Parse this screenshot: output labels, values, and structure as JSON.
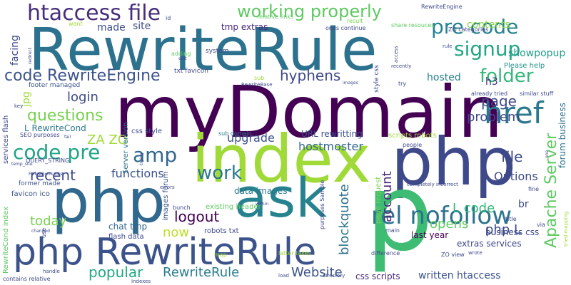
{
  "words": [
    {
      "text": "RewriteRule",
      "color": "#2c728e"
    },
    {
      "text": "myDomain",
      "color": "#440154"
    },
    {
      "text": "index",
      "color": "#a0da39"
    },
    {
      "text": "php",
      "color": "#3e4989"
    },
    {
      "text": "php",
      "color": "#31688e"
    },
    {
      "text": "ask",
      "color": "#26828e"
    },
    {
      "text": "php RewriteRule",
      "color": "#3b528b"
    },
    {
      "text": "p",
      "color": "#3fbc73"
    },
    {
      "text": "htaccess file",
      "color": "#472d7b"
    },
    {
      "text": "working properly",
      "color": "#5ec962"
    },
    {
      "text": "pre code",
      "color": "#26828e"
    },
    {
      "text": "signup",
      "color": "#21a585"
    },
    {
      "text": "href",
      "color": "#2a788e"
    },
    {
      "text": "rel nofollow",
      "color": "#2c728e"
    },
    {
      "text": "code RewriteEngine",
      "color": "#3b528b"
    },
    {
      "text": "hyphens",
      "color": "#3e4989"
    },
    {
      "text": "folder",
      "color": "#35b779"
    },
    {
      "text": "code pre",
      "color": "#20a486"
    },
    {
      "text": "amp",
      "color": "#31688e"
    },
    {
      "text": "work",
      "color": "#2a788e"
    },
    {
      "text": "Apache Server",
      "color": "#5ec962"
    },
    {
      "text": "questions",
      "color": "#7ad151"
    },
    {
      "text": "recent",
      "color": "#3e4989"
    },
    {
      "text": "logout",
      "color": "#440154"
    },
    {
      "text": "popular",
      "color": "#22a884"
    },
    {
      "text": "RewriteRule",
      "color": "#287c8e"
    },
    {
      "text": "Website",
      "color": "#3b528b"
    },
    {
      "text": "blockquote",
      "color": "#2c728e"
    },
    {
      "text": "account",
      "color": "#482878"
    },
    {
      "text": "login",
      "color": "#3e4989"
    },
    {
      "text": "page",
      "color": "#3e4989"
    },
    {
      "text": "upgrade",
      "color": "#3b528b"
    },
    {
      "text": "hostmoster",
      "color": "#31688e"
    },
    {
      "text": "today",
      "color": "#7ad151"
    },
    {
      "text": "now",
      "color": "#bddf26"
    },
    {
      "text": "file",
      "color": "#3e4989"
    },
    {
      "text": "php L",
      "color": "#3e4989"
    },
    {
      "text": "L code",
      "color": "#35b779"
    },
    {
      "text": "opens",
      "color": "#5ec962"
    },
    {
      "text": "problem",
      "color": "#3e4989"
    },
    {
      "text": "functions",
      "color": "#3b528b"
    },
    {
      "text": "Options",
      "color": "#3e4989"
    },
    {
      "text": "hosted",
      "color": "#26828e"
    },
    {
      "text": "ZA ZO",
      "color": "#a0da39"
    },
    {
      "text": "contents",
      "color": "#86d549"
    },
    {
      "text": "showpopup",
      "color": "#1f9e89"
    },
    {
      "text": "made",
      "color": "#3b528b"
    },
    {
      "text": "site",
      "color": "#3e4989"
    },
    {
      "text": "tmp extras",
      "color": "#482878"
    },
    {
      "text": "h3",
      "color": "#472d7b"
    },
    {
      "text": "Please help",
      "color": "#21918c"
    },
    {
      "text": "facing",
      "color": "#3e4989"
    },
    {
      "text": "jpg",
      "color": "#a0da39"
    },
    {
      "text": "L RewriteCond",
      "color": "#2a788e"
    },
    {
      "text": "URL rewritting",
      "color": "#3b528b"
    },
    {
      "text": "data images",
      "color": "#2a788e"
    },
    {
      "text": "last year",
      "color": "#440154"
    },
    {
      "text": "business css",
      "color": "#3e4989"
    },
    {
      "text": "extras services",
      "color": "#3e4989"
    },
    {
      "text": "css scripts",
      "color": "#482878"
    },
    {
      "text": "written htaccess",
      "color": "#3b528b"
    },
    {
      "text": "chat tmp",
      "color": "#31688e"
    },
    {
      "text": "br",
      "color": "#3e4989"
    },
    {
      "text": "forum business",
      "color": "#2c728e"
    },
    {
      "text": "css style",
      "color": "#3e4989"
    },
    {
      "text": "services flash",
      "color": "#3e4989"
    },
    {
      "text": "RewriteCond index",
      "color": "#5ec962"
    },
    {
      "text": "Server version",
      "color": "#2c728e"
    },
    {
      "text": "images forum",
      "color": "#3b528b"
    },
    {
      "text": "existing header",
      "color": "#5ec962"
    },
    {
      "text": "flash data",
      "color": "#3e4989"
    },
    {
      "text": "robots txt",
      "color": "#3e4989"
    },
    {
      "text": "page request",
      "color": "#7ad151"
    },
    {
      "text": "scripts robots",
      "color": "#a0da39"
    },
    {
      "text": "style css",
      "color": "#3e4989"
    },
    {
      "text": "favicon ico",
      "color": "#3b528b"
    },
    {
      "text": "former made",
      "color": "#3b528b"
    },
    {
      "text": "footer managed",
      "color": "#3b528b"
    },
    {
      "text": "txt favicon",
      "color": "#3e4989"
    },
    {
      "text": "system",
      "color": "#3e4989"
    },
    {
      "text": "relative links",
      "color": "#5ec962"
    },
    {
      "text": "ones continue",
      "color": "#3e4989"
    },
    {
      "text": "share resouces",
      "color": "#5ec962"
    },
    {
      "text": "ZO categories",
      "color": "#3e4989"
    },
    {
      "text": "RewriteEngine",
      "color": "#3e4989"
    },
    {
      "text": "result",
      "color": "#7ad151"
    },
    {
      "text": "want",
      "color": "#a0da39"
    },
    {
      "text": "adding",
      "color": "#5ec962"
    },
    {
      "text": "SEO purposes",
      "color": "#3e4989"
    },
    {
      "text": "QUERY_STRING",
      "color": "#3e4989"
    },
    {
      "text": "sub domain",
      "color": "#2a788e"
    },
    {
      "text": "people",
      "color": "#3e4989"
    },
    {
      "text": "already tried",
      "color": "#3e4989"
    },
    {
      "text": "similar stuff",
      "color": "#3e4989"
    },
    {
      "text": "try",
      "color": "#3e4989"
    },
    {
      "text": "fine",
      "color": "#3e4989"
    },
    {
      "text": "via",
      "color": "#3e4989"
    },
    {
      "text": "title",
      "color": "#3e4989"
    },
    {
      "text": "ZO view",
      "color": "#3e4989"
    },
    {
      "text": "main",
      "color": "#3e4989"
    },
    {
      "text": "difference",
      "color": "#3e4989"
    },
    {
      "text": "latter takes",
      "color": "#a0da39"
    },
    {
      "text": "purposes Sample",
      "color": "#3e4989"
    },
    {
      "text": "contains relative",
      "color": "#3e4989"
    },
    {
      "text": "handle",
      "color": "#3e4989"
    },
    {
      "text": "bunch",
      "color": "#3e4989"
    },
    {
      "text": "Indexes",
      "color": "#3e4989"
    },
    {
      "text": "load",
      "color": "#3e4989"
    },
    {
      "text": "map",
      "color": "#a0da39"
    },
    {
      "text": "directory",
      "color": "#3e4989"
    },
    {
      "text": "wrote",
      "color": "#3e4989"
    },
    {
      "text": "completely incorrect",
      "color": "#3e4989"
    },
    {
      "text": "recently",
      "color": "#3e4989"
    },
    {
      "text": "access",
      "color": "#3e4989"
    },
    {
      "text": "rule",
      "color": "#3e4989"
    },
    {
      "text": "RewriteBase",
      "color": "#3e4989"
    },
    {
      "text": "sub",
      "color": "#a0da39"
    },
    {
      "text": "images",
      "color": "#3e4989"
    },
    {
      "text": "id",
      "color": "#3e4989"
    },
    {
      "text": "redirect",
      "color": "#3e4989"
    },
    {
      "text": "temp_site",
      "color": "#3e4989"
    },
    {
      "text": "key",
      "color": "#3e4989"
    },
    {
      "text": "use",
      "color": "#3e4989"
    },
    {
      "text": "changed",
      "color": "#3e4989"
    },
    {
      "text": "FollowSymLinks",
      "color": "#3e4989"
    },
    {
      "text": "errors",
      "color": "#3e4989"
    },
    {
      "text": "fail",
      "color": "#3e4989"
    },
    {
      "text": "edit",
      "color": "#3e4989"
    },
    {
      "text": "trying",
      "color": "#3e4989"
    },
    {
      "text": "within",
      "color": "#3e4989"
    },
    {
      "text": "one",
      "color": "#3e4989"
    },
    {
      "text": "tried mapping",
      "color": "#a0da39"
    }
  ]
}
